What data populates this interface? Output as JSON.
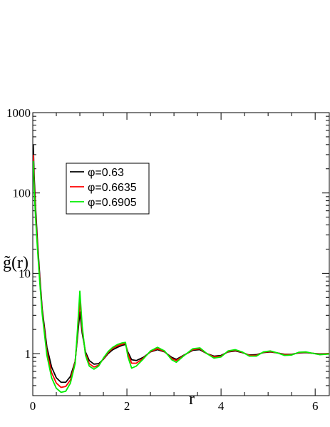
{
  "chart_data": {
    "type": "line",
    "xlabel": "r",
    "ylabel": "g̃(r)",
    "xlim": [
      0,
      6.3
    ],
    "ylim": [
      0.3,
      1000
    ],
    "yscale": "log",
    "x_ticks": [
      0,
      2,
      4,
      6
    ],
    "x_tick_labels": [
      "0",
      "2",
      "4",
      "6"
    ],
    "y_ticks": [
      1,
      10,
      100,
      1000
    ],
    "y_tick_labels": [
      "1",
      "10",
      "100",
      "1000"
    ],
    "legend_position": "top-left",
    "series": [
      {
        "name": "φ=0.63",
        "color": "#000000",
        "points": [
          [
            0.01,
            400
          ],
          [
            0.03,
            160
          ],
          [
            0.06,
            65
          ],
          [
            0.1,
            25
          ],
          [
            0.15,
            9
          ],
          [
            0.2,
            3.6
          ],
          [
            0.3,
            1.2
          ],
          [
            0.4,
            0.68
          ],
          [
            0.5,
            0.5
          ],
          [
            0.6,
            0.44
          ],
          [
            0.7,
            0.44
          ],
          [
            0.8,
            0.52
          ],
          [
            0.9,
            0.8
          ],
          [
            0.95,
            1.6
          ],
          [
            1.0,
            3.3
          ],
          [
            1.05,
            1.8
          ],
          [
            1.12,
            1.05
          ],
          [
            1.2,
            0.82
          ],
          [
            1.3,
            0.74
          ],
          [
            1.4,
            0.75
          ],
          [
            1.5,
            0.85
          ],
          [
            1.6,
            1.0
          ],
          [
            1.7,
            1.12
          ],
          [
            1.8,
            1.2
          ],
          [
            1.9,
            1.27
          ],
          [
            1.97,
            1.3
          ],
          [
            2.02,
            1.05
          ],
          [
            2.1,
            0.84
          ],
          [
            2.2,
            0.82
          ],
          [
            2.35,
            0.9
          ],
          [
            2.5,
            1.05
          ],
          [
            2.65,
            1.12
          ],
          [
            2.8,
            1.05
          ],
          [
            2.95,
            0.9
          ],
          [
            3.05,
            0.85
          ],
          [
            3.2,
            0.95
          ],
          [
            3.4,
            1.1
          ],
          [
            3.55,
            1.12
          ],
          [
            3.7,
            1.0
          ],
          [
            3.85,
            0.93
          ],
          [
            4.0,
            0.95
          ],
          [
            4.15,
            1.05
          ],
          [
            4.3,
            1.08
          ],
          [
            4.45,
            1.03
          ],
          [
            4.6,
            0.96
          ],
          [
            4.75,
            0.97
          ],
          [
            4.9,
            1.03
          ],
          [
            5.05,
            1.05
          ],
          [
            5.2,
            1.02
          ],
          [
            5.35,
            0.98
          ],
          [
            5.5,
            0.98
          ],
          [
            5.65,
            1.02
          ],
          [
            5.8,
            1.03
          ],
          [
            5.95,
            1.01
          ],
          [
            6.1,
            0.99
          ],
          [
            6.3,
            1.0
          ]
        ]
      },
      {
        "name": "φ=0.6635",
        "color": "#ff0000",
        "points": [
          [
            0.01,
            300
          ],
          [
            0.03,
            130
          ],
          [
            0.06,
            55
          ],
          [
            0.1,
            22
          ],
          [
            0.15,
            8
          ],
          [
            0.2,
            3.3
          ],
          [
            0.3,
            1.05
          ],
          [
            0.4,
            0.58
          ],
          [
            0.5,
            0.43
          ],
          [
            0.6,
            0.38
          ],
          [
            0.7,
            0.39
          ],
          [
            0.8,
            0.47
          ],
          [
            0.9,
            0.78
          ],
          [
            0.95,
            1.8
          ],
          [
            1.0,
            4.5
          ],
          [
            1.05,
            2.0
          ],
          [
            1.12,
            1.0
          ],
          [
            1.2,
            0.75
          ],
          [
            1.3,
            0.68
          ],
          [
            1.4,
            0.72
          ],
          [
            1.5,
            0.86
          ],
          [
            1.6,
            1.03
          ],
          [
            1.7,
            1.17
          ],
          [
            1.8,
            1.25
          ],
          [
            1.9,
            1.31
          ],
          [
            1.97,
            1.34
          ],
          [
            2.02,
            1.0
          ],
          [
            2.1,
            0.76
          ],
          [
            2.2,
            0.76
          ],
          [
            2.35,
            0.88
          ],
          [
            2.5,
            1.06
          ],
          [
            2.65,
            1.15
          ],
          [
            2.8,
            1.06
          ],
          [
            2.95,
            0.87
          ],
          [
            3.05,
            0.82
          ],
          [
            3.2,
            0.94
          ],
          [
            3.4,
            1.12
          ],
          [
            3.55,
            1.15
          ],
          [
            3.7,
            1.0
          ],
          [
            3.85,
            0.91
          ],
          [
            4.0,
            0.93
          ],
          [
            4.15,
            1.06
          ],
          [
            4.3,
            1.1
          ],
          [
            4.45,
            1.04
          ],
          [
            4.6,
            0.95
          ],
          [
            4.75,
            0.95
          ],
          [
            4.9,
            1.04
          ],
          [
            5.05,
            1.06
          ],
          [
            5.2,
            1.02
          ],
          [
            5.35,
            0.97
          ],
          [
            5.5,
            0.97
          ],
          [
            5.65,
            1.03
          ],
          [
            5.8,
            1.04
          ],
          [
            5.95,
            1.01
          ],
          [
            6.1,
            0.98
          ],
          [
            6.3,
            1.0
          ]
        ]
      },
      {
        "name": "φ=0.6905",
        "color": "#00ee00",
        "points": [
          [
            0.01,
            250
          ],
          [
            0.03,
            110
          ],
          [
            0.06,
            48
          ],
          [
            0.1,
            20
          ],
          [
            0.15,
            7.5
          ],
          [
            0.2,
            3.1
          ],
          [
            0.3,
            0.95
          ],
          [
            0.4,
            0.5
          ],
          [
            0.5,
            0.37
          ],
          [
            0.6,
            0.33
          ],
          [
            0.7,
            0.34
          ],
          [
            0.8,
            0.43
          ],
          [
            0.9,
            0.75
          ],
          [
            0.95,
            2.0
          ],
          [
            1.0,
            6.0
          ],
          [
            1.05,
            2.2
          ],
          [
            1.12,
            0.95
          ],
          [
            1.2,
            0.7
          ],
          [
            1.3,
            0.64
          ],
          [
            1.4,
            0.7
          ],
          [
            1.5,
            0.88
          ],
          [
            1.6,
            1.06
          ],
          [
            1.7,
            1.2
          ],
          [
            1.8,
            1.3
          ],
          [
            1.9,
            1.36
          ],
          [
            1.97,
            1.38
          ],
          [
            2.02,
            0.92
          ],
          [
            2.1,
            0.66
          ],
          [
            2.2,
            0.7
          ],
          [
            2.35,
            0.86
          ],
          [
            2.5,
            1.08
          ],
          [
            2.65,
            1.2
          ],
          [
            2.8,
            1.08
          ],
          [
            2.95,
            0.84
          ],
          [
            3.05,
            0.78
          ],
          [
            3.2,
            0.93
          ],
          [
            3.4,
            1.15
          ],
          [
            3.55,
            1.18
          ],
          [
            3.7,
            1.0
          ],
          [
            3.85,
            0.88
          ],
          [
            4.0,
            0.91
          ],
          [
            4.15,
            1.08
          ],
          [
            4.3,
            1.12
          ],
          [
            4.45,
            1.05
          ],
          [
            4.6,
            0.93
          ],
          [
            4.75,
            0.93
          ],
          [
            4.9,
            1.05
          ],
          [
            5.05,
            1.08
          ],
          [
            5.2,
            1.02
          ],
          [
            5.35,
            0.95
          ],
          [
            5.5,
            0.96
          ],
          [
            5.65,
            1.04
          ],
          [
            5.8,
            1.05
          ],
          [
            5.95,
            1.01
          ],
          [
            6.1,
            0.97
          ],
          [
            6.3,
            0.99
          ]
        ]
      }
    ]
  }
}
